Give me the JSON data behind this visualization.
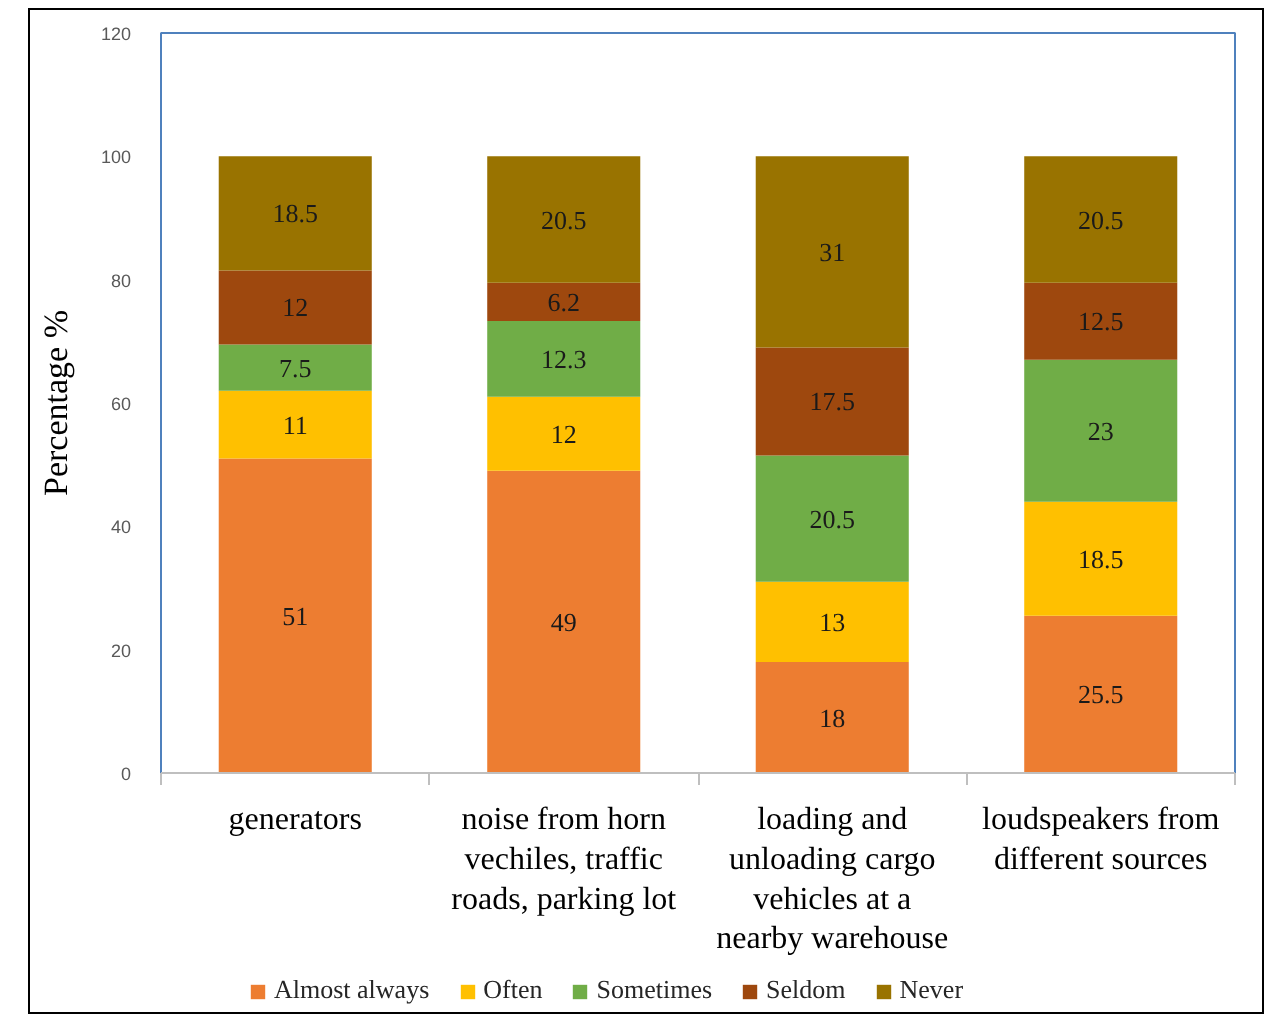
{
  "chart_data": {
    "type": "bar",
    "stacked": true,
    "ylabel": "Percentage %",
    "categories": [
      "generators",
      "noise from horn vechiles, traffic roads, parking lot",
      "loading and unloading cargo vehicles at a nearby warehouse",
      "loudspeakers from different sources"
    ],
    "series": [
      {
        "name": "Almost always",
        "color": "#ed7d31",
        "values": [
          51,
          49,
          18,
          25.5
        ]
      },
      {
        "name": "Often",
        "color": "#ffc000",
        "values": [
          11,
          12,
          13,
          18.5
        ]
      },
      {
        "name": "Sometimes",
        "color": "#70ad47",
        "values": [
          7.5,
          12.3,
          20.5,
          23
        ]
      },
      {
        "name": "Seldom",
        "color": "#9e480e",
        "values": [
          12,
          6.2,
          17.5,
          12.5
        ]
      },
      {
        "name": "Never",
        "color": "#997300",
        "values": [
          18.5,
          20.5,
          31,
          20.5
        ]
      }
    ],
    "ylim": [
      0,
      120
    ],
    "yticks": [
      0,
      20,
      40,
      60,
      80,
      100,
      120
    ],
    "data_labels": true,
    "grid": false,
    "legend": "bottom"
  }
}
